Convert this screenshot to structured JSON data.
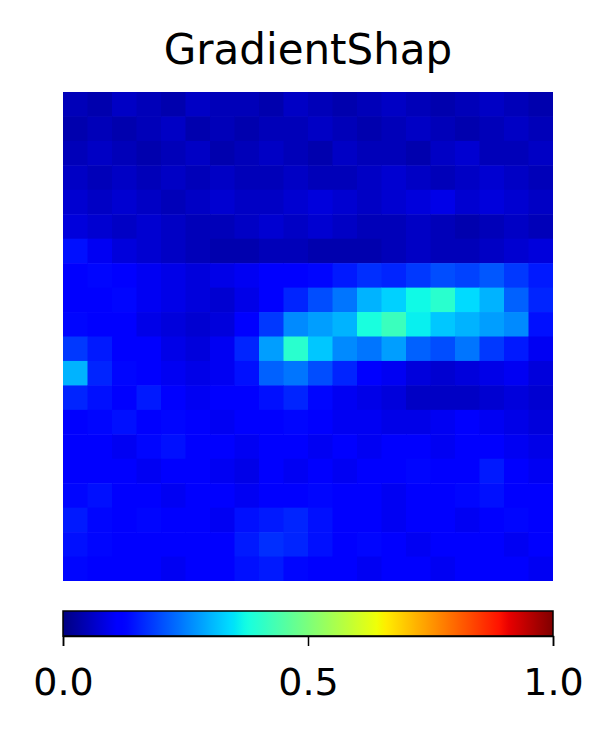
{
  "chart_data": {
    "type": "heatmap",
    "title": "GradientShap",
    "color": "jet",
    "tick_labels": false,
    "cells": [
      [
        0.05,
        0.04,
        0.06,
        0.05,
        0.04,
        0.06,
        0.05,
        0.05,
        0.04,
        0.06,
        0.05,
        0.04,
        0.05,
        0.06,
        0.05,
        0.04,
        0.05,
        0.06,
        0.05,
        0.04
      ],
      [
        0.04,
        0.05,
        0.04,
        0.05,
        0.06,
        0.04,
        0.05,
        0.04,
        0.05,
        0.05,
        0.06,
        0.05,
        0.04,
        0.05,
        0.06,
        0.05,
        0.04,
        0.05,
        0.06,
        0.05
      ],
      [
        0.05,
        0.06,
        0.05,
        0.04,
        0.05,
        0.06,
        0.04,
        0.05,
        0.06,
        0.05,
        0.04,
        0.06,
        0.05,
        0.05,
        0.04,
        0.06,
        0.07,
        0.05,
        0.05,
        0.06
      ],
      [
        0.06,
        0.05,
        0.06,
        0.05,
        0.06,
        0.05,
        0.06,
        0.05,
        0.05,
        0.06,
        0.05,
        0.05,
        0.06,
        0.07,
        0.06,
        0.05,
        0.06,
        0.07,
        0.06,
        0.05
      ],
      [
        0.07,
        0.06,
        0.07,
        0.06,
        0.05,
        0.06,
        0.07,
        0.06,
        0.06,
        0.07,
        0.08,
        0.07,
        0.06,
        0.07,
        0.08,
        0.09,
        0.07,
        0.08,
        0.07,
        0.06
      ],
      [
        0.08,
        0.07,
        0.06,
        0.07,
        0.06,
        0.05,
        0.05,
        0.06,
        0.07,
        0.06,
        0.07,
        0.06,
        0.05,
        0.05,
        0.06,
        0.05,
        0.04,
        0.05,
        0.06,
        0.05
      ],
      [
        0.14,
        0.1,
        0.08,
        0.07,
        0.06,
        0.05,
        0.04,
        0.04,
        0.05,
        0.05,
        0.04,
        0.04,
        0.04,
        0.05,
        0.06,
        0.05,
        0.05,
        0.06,
        0.07,
        0.08
      ],
      [
        0.12,
        0.13,
        0.11,
        0.1,
        0.09,
        0.08,
        0.09,
        0.1,
        0.12,
        0.11,
        0.13,
        0.15,
        0.17,
        0.16,
        0.18,
        0.2,
        0.19,
        0.21,
        0.18,
        0.15
      ],
      [
        0.11,
        0.12,
        0.13,
        0.1,
        0.09,
        0.08,
        0.07,
        0.09,
        0.12,
        0.16,
        0.2,
        0.24,
        0.3,
        0.33,
        0.37,
        0.4,
        0.34,
        0.3,
        0.22,
        0.16
      ],
      [
        0.13,
        0.11,
        0.12,
        0.09,
        0.08,
        0.07,
        0.08,
        0.11,
        0.18,
        0.26,
        0.28,
        0.3,
        0.38,
        0.42,
        0.36,
        0.32,
        0.3,
        0.28,
        0.26,
        0.14
      ],
      [
        0.18,
        0.15,
        0.12,
        0.11,
        0.09,
        0.08,
        0.1,
        0.16,
        0.28,
        0.4,
        0.32,
        0.26,
        0.24,
        0.28,
        0.22,
        0.2,
        0.24,
        0.18,
        0.15,
        0.1
      ],
      [
        0.3,
        0.16,
        0.13,
        0.12,
        0.1,
        0.09,
        0.1,
        0.14,
        0.22,
        0.24,
        0.2,
        0.16,
        0.12,
        0.1,
        0.08,
        0.07,
        0.08,
        0.09,
        0.1,
        0.08
      ],
      [
        0.16,
        0.14,
        0.12,
        0.15,
        0.12,
        0.1,
        0.11,
        0.12,
        0.14,
        0.16,
        0.13,
        0.1,
        0.09,
        0.08,
        0.06,
        0.06,
        0.06,
        0.07,
        0.08,
        0.07
      ],
      [
        0.12,
        0.13,
        0.14,
        0.11,
        0.13,
        0.12,
        0.1,
        0.11,
        0.12,
        0.13,
        0.11,
        0.1,
        0.1,
        0.09,
        0.09,
        0.1,
        0.11,
        0.1,
        0.09,
        0.08
      ],
      [
        0.11,
        0.12,
        0.1,
        0.13,
        0.14,
        0.11,
        0.12,
        0.1,
        0.12,
        0.11,
        0.1,
        0.11,
        0.1,
        0.12,
        0.11,
        0.1,
        0.12,
        0.11,
        0.1,
        0.09
      ],
      [
        0.12,
        0.11,
        0.12,
        0.1,
        0.11,
        0.12,
        0.1,
        0.09,
        0.11,
        0.1,
        0.11,
        0.1,
        0.12,
        0.11,
        0.13,
        0.12,
        0.11,
        0.15,
        0.12,
        0.1
      ],
      [
        0.13,
        0.14,
        0.12,
        0.11,
        0.1,
        0.11,
        0.12,
        0.1,
        0.11,
        0.12,
        0.13,
        0.12,
        0.11,
        0.1,
        0.11,
        0.12,
        0.13,
        0.14,
        0.12,
        0.11
      ],
      [
        0.15,
        0.13,
        0.12,
        0.13,
        0.11,
        0.12,
        0.1,
        0.14,
        0.15,
        0.16,
        0.14,
        0.12,
        0.11,
        0.1,
        0.12,
        0.11,
        0.1,
        0.12,
        0.13,
        0.12
      ],
      [
        0.14,
        0.13,
        0.12,
        0.11,
        0.12,
        0.11,
        0.12,
        0.15,
        0.17,
        0.16,
        0.14,
        0.12,
        0.13,
        0.11,
        0.1,
        0.11,
        0.12,
        0.11,
        0.1,
        0.12
      ],
      [
        0.13,
        0.12,
        0.11,
        0.12,
        0.1,
        0.11,
        0.12,
        0.14,
        0.15,
        0.13,
        0.12,
        0.11,
        0.1,
        0.11,
        0.12,
        0.1,
        0.11,
        0.12,
        0.11,
        0.1
      ]
    ],
    "colorbar": {
      "range": [
        0,
        1
      ],
      "ticks": [
        {
          "value": 0,
          "label": "0.0"
        },
        {
          "value": 0.5,
          "label": "0.5"
        },
        {
          "value": 1,
          "label": "1.0"
        }
      ]
    }
  }
}
